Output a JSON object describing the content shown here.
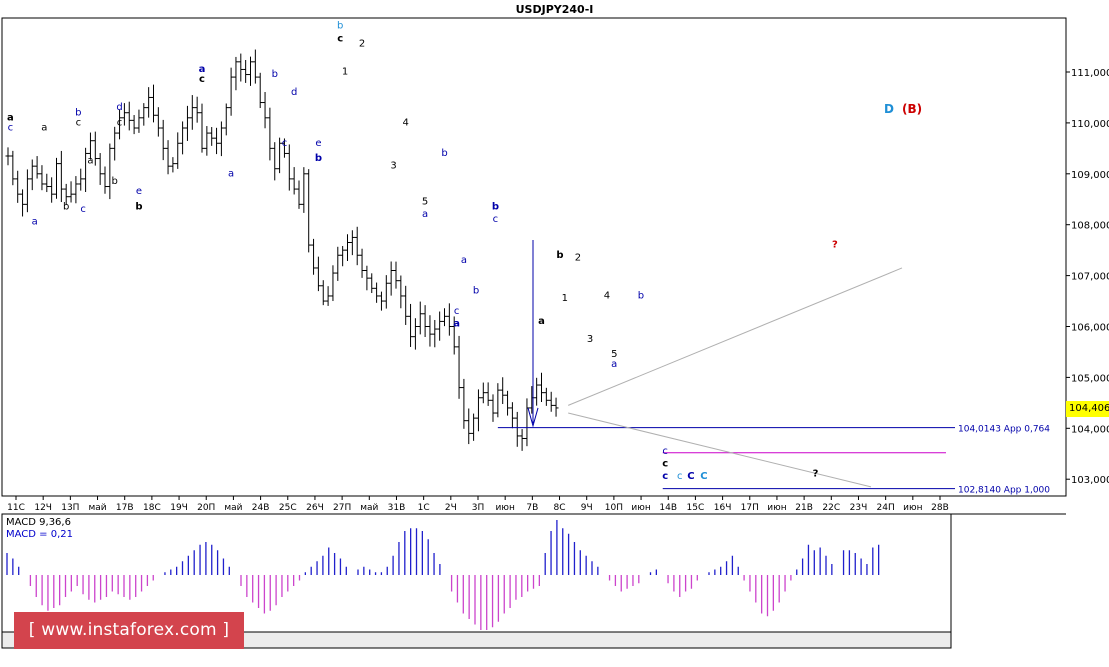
{
  "title": "USDJPY240-I",
  "colors": {
    "candles": "#000000",
    "wave_blue": "#0000aa",
    "wave_cyan": "#1f8fd6",
    "wave_red": "#cc0000",
    "support": "#0000aa",
    "magenta": "#cc00cc",
    "projection": "#b0b0b0",
    "macd_pos": "#2020cc",
    "macd_neg": "#cc44cc",
    "price_tag_bg": "#ffff00",
    "watermark_bg": "#d3444d"
  },
  "chart_data": {
    "type": "candlestick",
    "symbol": "USDJPY240-I",
    "y_range": [
      102.6,
      111.8
    ],
    "y_ticks": [
      "111,000",
      "110,000",
      "109,000",
      "108,000",
      "107,000",
      "106,000",
      "105,000",
      "104,000",
      "103,000"
    ],
    "x_ticks": [
      "11С",
      "12Ч",
      "13П",
      "май",
      "17В",
      "18С",
      "19Ч",
      "20П",
      "май",
      "24В",
      "25С",
      "26Ч",
      "27П",
      "май",
      "31В",
      "1С",
      "2Ч",
      "3П",
      "июн",
      "7В",
      "8С",
      "9Ч",
      "10П",
      "июн",
      "14В",
      "15С",
      "16Ч",
      "17П",
      "июн",
      "21В",
      "22С",
      "23Ч",
      "24П",
      "июн",
      "28В"
    ],
    "last_price": "104,406",
    "close_path": [
      109.35,
      108.9,
      108.6,
      108.4,
      108.9,
      109.15,
      109.0,
      108.8,
      108.75,
      108.6,
      109.2,
      108.7,
      108.55,
      108.6,
      108.8,
      108.9,
      109.4,
      109.65,
      109.3,
      109.0,
      108.75,
      109.5,
      109.8,
      110.1,
      110.2,
      110.05,
      109.9,
      110.1,
      110.3,
      110.5,
      110.15,
      109.9,
      109.5,
      109.15,
      109.2,
      109.6,
      109.9,
      110.1,
      110.3,
      110.2,
      109.5,
      109.8,
      109.7,
      109.6,
      109.9,
      110.3,
      110.9,
      111.2,
      111.05,
      110.95,
      111.2,
      110.9,
      110.4,
      110.1,
      109.5,
      109.1,
      109.6,
      109.4,
      108.9,
      108.7,
      108.4,
      109.0,
      107.6,
      107.15,
      106.8,
      106.5,
      106.6,
      107.05,
      107.4,
      107.5,
      107.65,
      107.75,
      107.4,
      107.1,
      106.95,
      106.75,
      106.6,
      106.5,
      106.85,
      107.1,
      106.9,
      106.6,
      106.2,
      105.8,
      106.0,
      106.25,
      106.0,
      105.85,
      105.95,
      106.1,
      106.2,
      106.0,
      105.6,
      104.8,
      104.15,
      103.9,
      104.2,
      104.6,
      104.7,
      104.55,
      104.3,
      104.75,
      104.65,
      104.4,
      104.2,
      103.85,
      103.8,
      104.4,
      104.6,
      104.85,
      104.7,
      104.55,
      104.45,
      104.4
    ],
    "wave_labels": [
      {
        "text": "a",
        "c": "0",
        "x": 0.5,
        "p": 110.05,
        "b": true
      },
      {
        "text": "c",
        "c": "1",
        "x": 0.5,
        "p": 109.85
      },
      {
        "text": "a",
        "c": "1",
        "x": 5.5,
        "p": 108.0
      },
      {
        "text": "a",
        "c": "0",
        "x": 7.5,
        "p": 109.85
      },
      {
        "text": "b",
        "c": "0",
        "x": 12,
        "p": 108.3
      },
      {
        "text": "b",
        "c": "1",
        "x": 14.5,
        "p": 110.15
      },
      {
        "text": "c",
        "c": "0",
        "x": 14.5,
        "p": 109.95
      },
      {
        "text": "c",
        "c": "1",
        "x": 15.5,
        "p": 108.25
      },
      {
        "text": "a",
        "c": "0",
        "x": 17,
        "p": 109.2
      },
      {
        "text": "d",
        "c": "1",
        "x": 23,
        "p": 110.25
      },
      {
        "text": "c",
        "c": "0",
        "x": 23,
        "p": 109.95
      },
      {
        "text": "b",
        "c": "0",
        "x": 22,
        "p": 108.8
      },
      {
        "text": "e",
        "c": "1",
        "x": 27,
        "p": 108.6
      },
      {
        "text": "b",
        "c": "0",
        "x": 27,
        "p": 108.3,
        "b": true
      },
      {
        "text": "a",
        "c": "1",
        "x": 40,
        "p": 111.0,
        "b": true
      },
      {
        "text": "c",
        "c": "0",
        "x": 40,
        "p": 110.8,
        "b": true
      },
      {
        "text": "a",
        "c": "1",
        "x": 46,
        "p": 108.95
      },
      {
        "text": "b",
        "c": "1",
        "x": 55,
        "p": 110.9
      },
      {
        "text": "d",
        "c": "1",
        "x": 59,
        "p": 110.55
      },
      {
        "text": "c",
        "c": "1",
        "x": 57,
        "p": 109.55
      },
      {
        "text": "e",
        "c": "1",
        "x": 64,
        "p": 109.55
      },
      {
        "text": "b",
        "c": "1",
        "x": 64,
        "p": 109.25,
        "b": true
      },
      {
        "text": "b",
        "c": "2",
        "x": 68.5,
        "p": 111.85
      },
      {
        "text": "c",
        "c": "0",
        "x": 68.5,
        "p": 111.6,
        "b": true
      },
      {
        "text": "1",
        "c": "0",
        "x": 69.5,
        "p": 110.95
      },
      {
        "text": "2",
        "c": "0",
        "x": 73,
        "p": 111.5
      },
      {
        "text": "4",
        "c": "0",
        "x": 82,
        "p": 109.95
      },
      {
        "text": "3",
        "c": "0",
        "x": 79.5,
        "p": 109.1
      },
      {
        "text": "5",
        "c": "0",
        "x": 86,
        "p": 108.4
      },
      {
        "text": "a",
        "c": "1",
        "x": 86,
        "p": 108.15
      },
      {
        "text": "b",
        "c": "1",
        "x": 90,
        "p": 109.35
      },
      {
        "text": "a",
        "c": "1",
        "x": 94,
        "p": 107.25
      },
      {
        "text": "b",
        "c": "1",
        "x": 96.5,
        "p": 106.65
      },
      {
        "text": "c",
        "c": "1",
        "x": 92.5,
        "p": 106.25
      },
      {
        "text": "a",
        "c": "1",
        "x": 92.5,
        "p": 106.0,
        "b": true
      },
      {
        "text": "b",
        "c": "1",
        "x": 100.5,
        "p": 108.3,
        "b": true
      },
      {
        "text": "c",
        "c": "1",
        "x": 100.5,
        "p": 108.05
      },
      {
        "text": "b",
        "c": "0",
        "x": 113.8,
        "p": 107.35,
        "b": true
      },
      {
        "text": "2",
        "c": "0",
        "x": 117.5,
        "p": 107.3
      },
      {
        "text": "1",
        "c": "0",
        "x": 114.8,
        "p": 106.5
      },
      {
        "text": "a",
        "c": "0",
        "x": 110,
        "p": 106.05,
        "b": true
      },
      {
        "text": "4",
        "c": "0",
        "x": 123.5,
        "p": 106.55
      },
      {
        "text": "3",
        "c": "0",
        "x": 120,
        "p": 105.7
      },
      {
        "text": "5",
        "c": "0",
        "x": 125,
        "p": 105.4
      },
      {
        "text": "a",
        "c": "1",
        "x": 125,
        "p": 105.2
      },
      {
        "text": "b",
        "c": "1",
        "x": 130.5,
        "p": 106.55
      },
      {
        "text": "c",
        "c": "1",
        "x": 135.5,
        "p": 103.5
      },
      {
        "text": "c",
        "c": "0",
        "x": 135.5,
        "p": 103.25,
        "b": true
      },
      {
        "text": "c",
        "c": "1",
        "x": 135.5,
        "p": 103.0,
        "b": true
      },
      {
        "text": "c",
        "c": "3",
        "x": 138.5,
        "p": 103.0
      },
      {
        "text": "C",
        "c": "1",
        "x": 140.8,
        "p": 103.0,
        "b": true
      },
      {
        "text": "C",
        "c": "3",
        "x": 143.5,
        "p": 103.0,
        "b": true
      },
      {
        "text": "?",
        "c": "0",
        "x": 166.5,
        "p": 103.05,
        "b": true
      },
      {
        "text": "?",
        "c": "2",
        "x": 170.5,
        "p": 107.55,
        "b": true
      }
    ],
    "level_lines": [
      {
        "price": 104.0143,
        "label": "104,0143 Арр 0,764",
        "color": "0"
      },
      {
        "price": 102.814,
        "label": "102,8140 Арр 1,000",
        "color": "0"
      },
      {
        "price": 103.52,
        "label": "",
        "color": "1"
      }
    ],
    "macd": {
      "title": "MACD 9,36,6",
      "value_label": "MACD = 0,21",
      "values": [
        0.4,
        0.3,
        0.15,
        0.0,
        -0.2,
        -0.4,
        -0.55,
        -0.65,
        -0.6,
        -0.55,
        -0.4,
        -0.3,
        -0.2,
        -0.35,
        -0.45,
        -0.5,
        -0.45,
        -0.4,
        -0.3,
        -0.35,
        -0.4,
        -0.45,
        -0.4,
        -0.3,
        -0.2,
        -0.1,
        0.0,
        0.05,
        0.1,
        0.15,
        0.25,
        0.35,
        0.45,
        0.55,
        0.6,
        0.55,
        0.45,
        0.3,
        0.15,
        0.0,
        -0.2,
        -0.4,
        -0.5,
        -0.6,
        -0.7,
        -0.65,
        -0.55,
        -0.4,
        -0.3,
        -0.2,
        -0.1,
        0.05,
        0.15,
        0.25,
        0.35,
        0.5,
        0.4,
        0.3,
        0.15,
        0.0,
        0.1,
        0.15,
        0.1,
        0.05,
        0.05,
        0.15,
        0.35,
        0.6,
        0.8,
        0.85,
        0.85,
        0.8,
        0.65,
        0.4,
        0.2,
        0.0,
        -0.3,
        -0.5,
        -0.7,
        -0.8,
        -0.9,
        -1.0,
        -1.0,
        -0.95,
        -0.85,
        -0.7,
        -0.6,
        -0.45,
        -0.4,
        -0.3,
        -0.25,
        -0.2,
        0.4,
        0.8,
        1.0,
        0.85,
        0.75,
        0.6,
        0.45,
        0.35,
        0.25,
        0.15,
        0.0,
        -0.1,
        -0.2,
        -0.3,
        -0.25,
        -0.2,
        -0.15,
        0.0,
        0.05,
        0.1,
        0.0,
        -0.15,
        -0.3,
        -0.4,
        -0.3,
        -0.25,
        -0.1,
        0.0,
        0.05,
        0.1,
        0.15,
        0.25,
        0.35,
        0.15,
        -0.1,
        -0.3,
        -0.5,
        -0.7,
        -0.75,
        -0.65,
        -0.5,
        -0.3,
        -0.1,
        0.1,
        0.3,
        0.55,
        0.45,
        0.5,
        0.35,
        0.2,
        0.0,
        0.45,
        0.45,
        0.4,
        0.3,
        0.2,
        0.5,
        0.55
      ]
    }
  },
  "legend_right": {
    "D": "D",
    "B": "(B)"
  },
  "watermark": "[ www.instaforex.com ]",
  "bottom_strip_text": "MACD 9,36,6 ..."
}
